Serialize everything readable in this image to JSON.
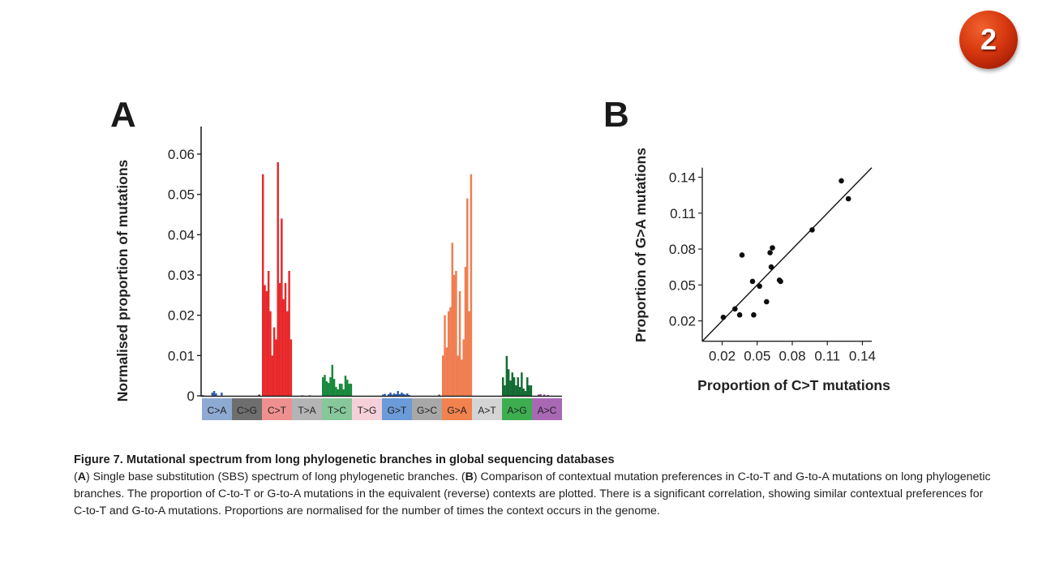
{
  "slide": {
    "badge_number": "2"
  },
  "panels": {
    "a_letter": "A",
    "b_letter": "B"
  },
  "caption": {
    "title": "Figure 7. Mutational spectrum from long phylogenetic branches in global sequencing databases",
    "paren_a_open": "(",
    "label_a": "A",
    "text_a": ") Single base substitution (SBS) spectrum of long phylogenetic branches. (",
    "label_b": "B",
    "text_b": ") Comparison of contextual mutation preferences in C-to-T and G-to-A mutations on long phylogenetic branches. The proportion of C-to-T or G-to-A mutations in the equivalent (reverse) contexts are plotted. There is a significant correlation, showing similar contextual preferences for C-to-T and G-to-A mutations. Proportions are normalised for the number of times the context occurs in the genome."
  },
  "chart_data": [
    {
      "type": "bar",
      "title": "",
      "xlabel": "",
      "ylabel": "Normalised proportion of mutations",
      "ylim": [
        0,
        0.066
      ],
      "yticks": [
        "0",
        "0.01",
        "0.02",
        "0.03",
        "0.04",
        "0.05",
        "0.06"
      ],
      "ytick_values": [
        0,
        0.01,
        0.02,
        0.03,
        0.04,
        0.05,
        0.06
      ],
      "grid": false,
      "bars_per_category": 16,
      "categories": [
        {
          "label": "C>A",
          "strip_color": "#8ea9d2",
          "bar_color": "#2f5fb0",
          "values": [
            0.0002,
            0,
            0,
            0,
            0,
            0.0008,
            0.0012,
            0.0006,
            0,
            0,
            0.0008,
            0,
            0,
            0,
            0,
            0
          ]
        },
        {
          "label": "C>G",
          "strip_color": "#6e6e6e",
          "bar_color": "#333333",
          "values": [
            0,
            0,
            0,
            0,
            0,
            0,
            0,
            0,
            0,
            0,
            0,
            0,
            0,
            0,
            0.0003,
            0
          ]
        },
        {
          "label": "C>T",
          "strip_color": "#ef9090",
          "bar_color": "#e8282a",
          "values": [
            0.055,
            0.0275,
            0.026,
            0.031,
            0.021,
            0.01,
            0.017,
            0.014,
            0.058,
            0.028,
            0.044,
            0.024,
            0.028,
            0.021,
            0.031,
            0.014
          ]
        },
        {
          "label": "T>A",
          "strip_color": "#b4b4b4",
          "bar_color": "#9a9a9a",
          "values": [
            0,
            0,
            0,
            0,
            0,
            0.0002,
            0,
            0,
            0,
            0.0002,
            0,
            0,
            0,
            0,
            0,
            0
          ]
        },
        {
          "label": "T>C",
          "strip_color": "#86c89a",
          "bar_color": "#17893c",
          "values": [
            0.0046,
            0.0052,
            0.0036,
            0.0032,
            0.0046,
            0.0077,
            0.0042,
            0.0022,
            0.0016,
            0.003,
            0.003,
            0.0016,
            0.005,
            0.004,
            0.003,
            0.003
          ]
        },
        {
          "label": "T>G",
          "strip_color": "#f6d0d8",
          "bar_color": "#e8a8b8",
          "values": [
            0,
            0,
            0,
            0,
            0,
            0,
            0,
            0,
            0,
            0,
            0,
            0,
            0,
            0,
            0,
            0
          ]
        },
        {
          "label": "G>T",
          "strip_color": "#6b9bd8",
          "bar_color": "#2f5fb0",
          "values": [
            0.0003,
            0.0005,
            0,
            0.0004,
            0.0008,
            0.0003,
            0.0006,
            0.0004,
            0.0012,
            0.0004,
            0.0008,
            0.0005,
            0.0003,
            0.0006,
            0.0002,
            0
          ]
        },
        {
          "label": "G>C",
          "strip_color": "#a8a8a8",
          "bar_color": "#555555",
          "values": [
            0,
            0,
            0,
            0,
            0,
            0,
            0,
            0,
            0,
            0,
            0,
            0,
            0,
            0,
            0.0003,
            0
          ]
        },
        {
          "label": "G>A",
          "strip_color": "#f2824e",
          "bar_color": "#f07d50",
          "values": [
            0.01,
            0.02,
            0.012,
            0.021,
            0.022,
            0.038,
            0.03,
            0.031,
            0.01,
            0.026,
            0.009,
            0.014,
            0.032,
            0.049,
            0.021,
            0.055
          ]
        },
        {
          "label": "A>T",
          "strip_color": "#d4d4d4",
          "bar_color": "#b0b0b0",
          "values": [
            0,
            0,
            0,
            0,
            0,
            0,
            0,
            0,
            0,
            0,
            0,
            0,
            0,
            0,
            0,
            0
          ]
        },
        {
          "label": "A>G",
          "strip_color": "#3cae50",
          "bar_color": "#136b33",
          "values": [
            0.0046,
            0.0026,
            0.0099,
            0.0066,
            0.0038,
            0.0058,
            0.0046,
            0.0026,
            0.0046,
            0.0022,
            0.0058,
            0.0018,
            0.0012,
            0.0046,
            0.0026,
            0.0026
          ]
        },
        {
          "label": "A>C",
          "strip_color": "#a868b4",
          "bar_color": "#8a3a98",
          "values": [
            0,
            0,
            0,
            0.0003,
            0.0004,
            0,
            0.0003,
            0,
            0.0002,
            0,
            0,
            0,
            0,
            0,
            0,
            0
          ]
        }
      ]
    },
    {
      "type": "scatter",
      "title": "",
      "xlabel": "Proportion of C>T mutations",
      "ylabel": "Proportion of G>A mutations",
      "xlim": [
        0.003,
        0.148
      ],
      "ylim": [
        0.003,
        0.148
      ],
      "xticks": [
        "0.02",
        "0.05",
        "0.08",
        "0.11",
        "0.14"
      ],
      "xtick_values": [
        0.02,
        0.05,
        0.08,
        0.11,
        0.14
      ],
      "yticks": [
        "0.02",
        "0.05",
        "0.08",
        "0.11",
        "0.14"
      ],
      "ytick_values": [
        0.02,
        0.05,
        0.08,
        0.11,
        0.14
      ],
      "grid": false,
      "points": [
        {
          "x": 0.021,
          "y": 0.023
        },
        {
          "x": 0.031,
          "y": 0.03
        },
        {
          "x": 0.035,
          "y": 0.025
        },
        {
          "x": 0.037,
          "y": 0.075
        },
        {
          "x": 0.046,
          "y": 0.053
        },
        {
          "x": 0.047,
          "y": 0.025
        },
        {
          "x": 0.052,
          "y": 0.049
        },
        {
          "x": 0.058,
          "y": 0.036
        },
        {
          "x": 0.061,
          "y": 0.077
        },
        {
          "x": 0.063,
          "y": 0.081
        },
        {
          "x": 0.062,
          "y": 0.065
        },
        {
          "x": 0.069,
          "y": 0.054
        },
        {
          "x": 0.07,
          "y": 0.053
        },
        {
          "x": 0.097,
          "y": 0.096
        },
        {
          "x": 0.122,
          "y": 0.137
        },
        {
          "x": 0.128,
          "y": 0.122
        }
      ],
      "fit_line": {
        "x": [
          0.003,
          0.148
        ],
        "y": [
          0.003,
          0.148
        ]
      }
    }
  ]
}
